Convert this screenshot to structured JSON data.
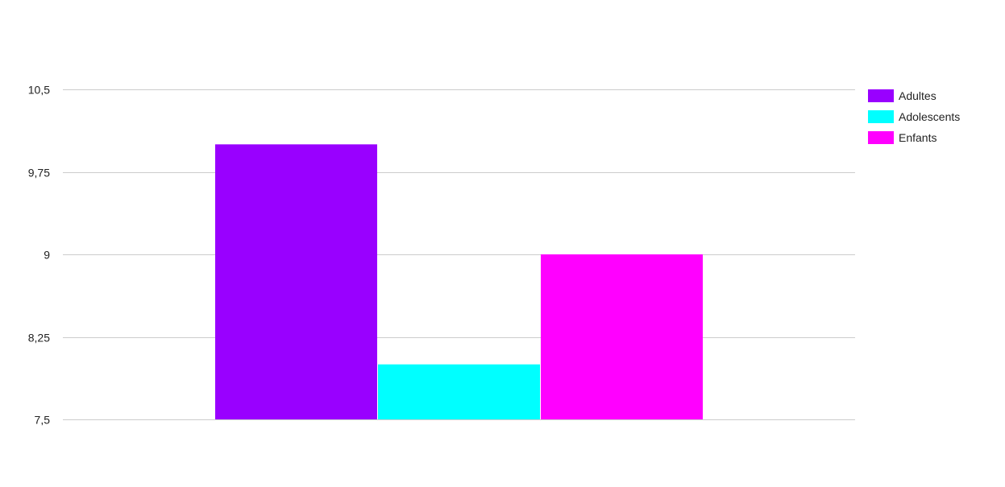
{
  "chart_data": {
    "type": "bar",
    "categories": [
      ""
    ],
    "series": [
      {
        "name": "Adultes",
        "values": [
          10.0
        ],
        "color": "#9900ff"
      },
      {
        "name": "Adolescents",
        "values": [
          8.0
        ],
        "color": "#00ffff"
      },
      {
        "name": "Enfants",
        "values": [
          9.0
        ],
        "color": "#ff00ff"
      }
    ],
    "yticks": [
      7.5,
      8.25,
      9,
      9.75,
      10.5
    ],
    "ytick_labels": [
      "7,5",
      "8,25",
      "9",
      "9,75",
      "10,5"
    ],
    "ylim": [
      7.5,
      10.5
    ],
    "grid": true,
    "legend_position": "right"
  }
}
